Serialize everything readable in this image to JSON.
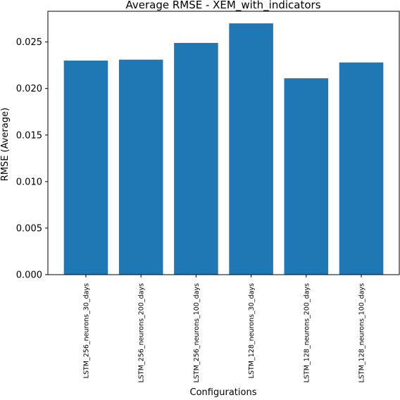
{
  "chart_data": {
    "type": "bar",
    "title": "Average RMSE - XEM_with_indicators",
    "xlabel": "Configurations",
    "ylabel": "RMSE (Average)",
    "categories": [
      "LSTM_256_neurons_30_days",
      "LSTM_256_neurons_200_days",
      "LSTM_256_neurons_100_days",
      "LSTM_128_neurons_30_days",
      "LSTM_128_neurons_200_days",
      "LSTM_128_neurons_100_days"
    ],
    "values": [
      0.023,
      0.0231,
      0.0249,
      0.027,
      0.0211,
      0.0228
    ],
    "ylim": [
      0,
      0.0283
    ],
    "yticks": [
      0.0,
      0.005,
      0.01,
      0.015,
      0.02,
      0.025
    ],
    "ytick_labels": [
      "0.000",
      "0.005",
      "0.010",
      "0.015",
      "0.020",
      "0.025"
    ],
    "grid": false,
    "legend": "none",
    "bar_color": "#1f77b4"
  }
}
